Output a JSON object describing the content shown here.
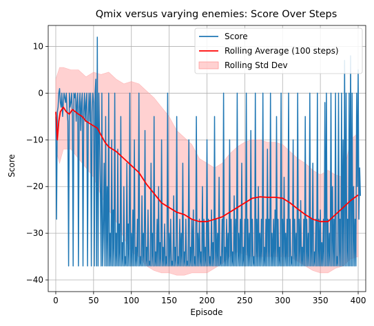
{
  "chart_data": {
    "type": "line",
    "title": "Qmix versus varying enemies: Score Over Steps",
    "xlabel": "Episode",
    "ylabel": "Score",
    "xlim": [
      -10,
      410
    ],
    "ylim": [
      -42.5,
      14.5
    ],
    "xticks": [
      0,
      50,
      100,
      150,
      200,
      250,
      300,
      350,
      400
    ],
    "yticks": [
      -40,
      -30,
      -20,
      -10,
      0,
      10
    ],
    "grid": true,
    "legend_position": "top-right",
    "legend": [
      {
        "label": "Score",
        "kind": "line",
        "color": "#1f77b4"
      },
      {
        "label": "Rolling Average (100 steps)",
        "kind": "line",
        "color": "#ff0000"
      },
      {
        "label": "Rolling Std Dev",
        "kind": "band",
        "color": "#ff9999"
      }
    ],
    "series": [
      {
        "name": "Rolling Average (100 steps)",
        "color": "#ff0000",
        "x": [
          0,
          2,
          4,
          6,
          8,
          10,
          14,
          18,
          22,
          26,
          30,
          35,
          40,
          45,
          50,
          55,
          60,
          65,
          70,
          75,
          80,
          90,
          100,
          110,
          120,
          130,
          140,
          150,
          160,
          170,
          180,
          190,
          200,
          210,
          220,
          230,
          240,
          250,
          260,
          270,
          280,
          290,
          300,
          310,
          320,
          330,
          340,
          350,
          360,
          370,
          380,
          390,
          400
        ],
        "y": [
          -4,
          -10,
          -6,
          -4,
          -3.5,
          -3,
          -4,
          -4.5,
          -3.5,
          -4,
          -4.5,
          -5,
          -6,
          -6.5,
          -7,
          -7.5,
          -9,
          -10.5,
          -11.5,
          -12,
          -12.5,
          -14,
          -15.5,
          -17,
          -19.5,
          -21.5,
          -23.5,
          -24.5,
          -25.5,
          -26,
          -27,
          -27.5,
          -27.5,
          -27,
          -26.5,
          -25.5,
          -24.5,
          -23.5,
          -22.5,
          -22.2,
          -22.3,
          -22.3,
          -22.5,
          -23.5,
          -24.8,
          -26,
          -27,
          -27.5,
          -27.5,
          -26,
          -24.5,
          -23,
          -21.8
        ]
      },
      {
        "name": "Rolling Std Dev",
        "color": "#ff9999",
        "x": [
          0,
          5,
          10,
          20,
          30,
          40,
          50,
          60,
          70,
          80,
          90,
          100,
          110,
          120,
          130,
          140,
          150,
          160,
          170,
          180,
          190,
          200,
          210,
          220,
          230,
          240,
          250,
          260,
          270,
          280,
          290,
          300,
          310,
          320,
          330,
          340,
          350,
          360,
          370,
          380,
          390,
          400
        ],
        "upper": [
          3,
          5.5,
          5.5,
          5,
          5,
          3.5,
          4.5,
          4,
          4.5,
          3,
          2,
          2.5,
          2,
          0.5,
          -1,
          -3,
          -5,
          -8,
          -9.5,
          -11,
          -14,
          -15,
          -16,
          -15,
          -13,
          -11.5,
          -10.5,
          -10,
          -10,
          -10.5,
          -10.5,
          -11,
          -12.5,
          -14,
          -15,
          -16.5,
          -17.5,
          -16.5,
          -17.5,
          -18,
          -10,
          -8.5
        ],
        "lower": [
          -12,
          -15,
          -12,
          -12,
          -14,
          -16,
          -18,
          -22,
          -25,
          -27.5,
          -31,
          -34,
          -35,
          -37,
          -38,
          -38.5,
          -38.5,
          -39,
          -39,
          -38.5,
          -38.5,
          -38.5,
          -37.5,
          -36.5,
          -35,
          -34,
          -34.5,
          -35,
          -35,
          -35,
          -35,
          -35,
          -35,
          -36,
          -37,
          -38,
          -38.5,
          -38.5,
          -37.5,
          -37,
          -35.5,
          -35
        ]
      }
    ],
    "score_series": {
      "name": "Score",
      "color": "#1f77b4",
      "x_start": 0,
      "x_step": 1,
      "y": [
        -5,
        -27,
        -4,
        -3,
        0,
        1,
        -2,
        -3,
        0,
        -5,
        -2,
        0,
        -1,
        -2,
        0,
        -4,
        -6,
        -37,
        0,
        -3,
        -2,
        0,
        -5,
        -37,
        0,
        -1,
        0,
        -6,
        -2,
        0,
        -37,
        -3,
        0,
        -8,
        -2,
        0,
        -37,
        -4,
        0,
        -6,
        -2,
        0,
        -37,
        -5,
        0,
        -6,
        0,
        -37,
        -4,
        0,
        -2,
        -37,
        0,
        3,
        -37,
        12,
        -37,
        0,
        -10,
        -20,
        -37,
        0,
        -37,
        -30,
        -15,
        -37,
        -5,
        -37,
        -20,
        -37,
        0,
        -37,
        -30,
        -37,
        -10,
        -37,
        -25,
        -37,
        0,
        -37,
        -30,
        -37,
        -12,
        -37,
        -28,
        -37,
        -5,
        -37,
        -32,
        -37,
        -20,
        -37,
        -35,
        -37,
        -15,
        -37,
        -28,
        -37,
        0,
        -37,
        -30,
        -37,
        -25,
        -37,
        -10,
        -37,
        -33,
        -37,
        -27,
        -37,
        0,
        -37,
        -35,
        -37,
        -22,
        -37,
        -30,
        -37,
        -8,
        -37,
        -33,
        -37,
        -25,
        -37,
        -36,
        -37,
        -15,
        -37,
        -30,
        -37,
        -5,
        -37,
        -34,
        -37,
        -27,
        -37,
        -20,
        -37,
        -32,
        -37,
        -10,
        -37,
        -33,
        -37,
        -28,
        -37,
        -35,
        -37,
        0,
        -37,
        -30,
        -37,
        -27,
        -37,
        -36,
        -37,
        -22,
        -37,
        -33,
        -37,
        -5,
        -37,
        -35,
        -37,
        -27,
        -37,
        -30,
        -37,
        -15,
        -37,
        -34,
        -37,
        -27,
        -37,
        -36,
        -37,
        -10,
        -37,
        -33,
        -37,
        -27,
        -37,
        -25,
        -37,
        -35,
        -37,
        -5,
        -37,
        -30,
        -37,
        -27,
        -37,
        -34,
        -37,
        -20,
        -37,
        -27,
        -37,
        -33,
        -37,
        -10,
        -37,
        -27,
        -37,
        -35,
        -37,
        -25,
        -37,
        -32,
        -37,
        -5,
        -37,
        -27,
        -37,
        -30,
        -37,
        -18,
        -37,
        -35,
        -37,
        -27,
        -37,
        0,
        -37,
        -33,
        -37,
        -27,
        -37,
        -30,
        -37,
        -10,
        -37,
        -27,
        -37,
        -34,
        -37,
        -22,
        -37,
        -27,
        -37,
        0,
        -37,
        -30,
        -37,
        -27,
        -37,
        -15,
        -37,
        -33,
        -37,
        -27,
        -37,
        0,
        -37,
        -27,
        -37,
        -30,
        -37,
        -8,
        -37,
        -27,
        -37,
        -35,
        -37,
        0,
        -37,
        -27,
        -37,
        -20,
        -37,
        -30,
        -37,
        -27,
        -37,
        0,
        -37,
        -33,
        -37,
        -27,
        -37,
        -12,
        -37,
        -27,
        -37,
        0,
        -37,
        -30,
        -37,
        -27,
        -37,
        -25,
        -37,
        -5,
        -37,
        -27,
        -37,
        -33,
        -37,
        0,
        -37,
        -27,
        -37,
        -18,
        -37,
        -30,
        -37,
        -27,
        -37,
        0,
        -37,
        -27,
        -37,
        -35,
        -37,
        -10,
        -37,
        -27,
        -37,
        -30,
        -37,
        0,
        -37,
        -27,
        -37,
        -23,
        -37,
        -33,
        -37,
        -27,
        -37,
        -5,
        -37,
        -27,
        -37,
        -30,
        -37,
        0,
        -37,
        -27,
        -37,
        -15,
        -37,
        -34,
        -37,
        -27,
        -37,
        0,
        -37,
        -27,
        -37,
        -25,
        -37,
        -32,
        -37,
        -27,
        -37,
        -2,
        -37,
        0,
        -37,
        -27,
        -37,
        -30,
        -37,
        0,
        -37,
        -20,
        -37,
        -27,
        -37,
        0,
        -37,
        -35,
        -37,
        0,
        -37,
        -27,
        -37,
        0,
        -37,
        -10,
        -37,
        7,
        -37,
        0,
        -37,
        -27,
        -37,
        0,
        -37,
        8,
        -37,
        0,
        -37,
        -20,
        -37,
        -27,
        -37,
        0,
        -20,
        5,
        -27,
        -16,
        -22
      ]
    }
  }
}
